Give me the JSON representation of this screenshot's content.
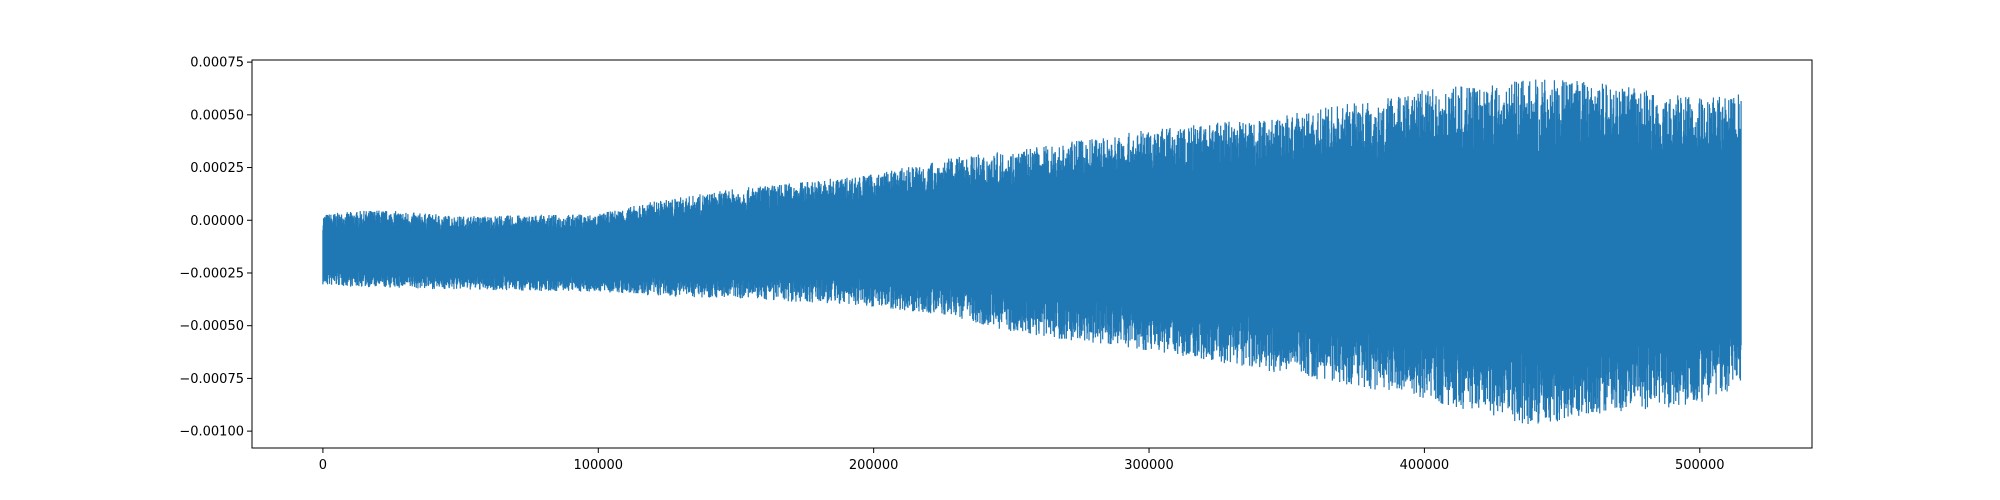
{
  "chart_data": {
    "type": "line",
    "title": "",
    "xlabel": "",
    "ylabel": "",
    "grid": false,
    "xlim": [
      -25750,
      540750
    ],
    "ylim": [
      -0.00108,
      0.00076
    ],
    "x_ticks": [
      0,
      100000,
      200000,
      300000,
      400000,
      500000
    ],
    "x_tick_labels": [
      "0",
      "100000",
      "200000",
      "300000",
      "400000",
      "500000"
    ],
    "y_ticks": [
      0.00075,
      0.0005,
      0.00025,
      0.0,
      -0.00025,
      -0.0005,
      -0.00075,
      -0.001
    ],
    "y_tick_labels": [
      "0.00075",
      "0.00050",
      "0.00025",
      "0.00000",
      "−0.00025",
      "−0.00050",
      "−0.00075",
      "−0.00100"
    ],
    "series": [
      {
        "color": "#1f77b4",
        "x_range": [
          0,
          515000
        ],
        "envelope": {
          "x": [
            0,
            20000,
            50000,
            100000,
            120000,
            150000,
            200000,
            230000,
            250000,
            300000,
            350000,
            400000,
            440000,
            460000,
            500000,
            515000
          ],
          "upper": [
            3e-05,
            5e-05,
            2e-05,
            3e-05,
            9e-05,
            0.00015,
            0.00022,
            0.0003,
            0.00033,
            0.00043,
            0.0005,
            0.00062,
            0.00067,
            0.00066,
            0.00058,
            0.0006
          ],
          "lower": [
            -0.00031,
            -0.00032,
            -0.00033,
            -0.00034,
            -0.00036,
            -0.00037,
            -0.00041,
            -0.00046,
            -0.00053,
            -0.00062,
            -0.00073,
            -0.00085,
            -0.00098,
            -0.00092,
            -0.00088,
            -0.00078
          ]
        }
      }
    ]
  }
}
